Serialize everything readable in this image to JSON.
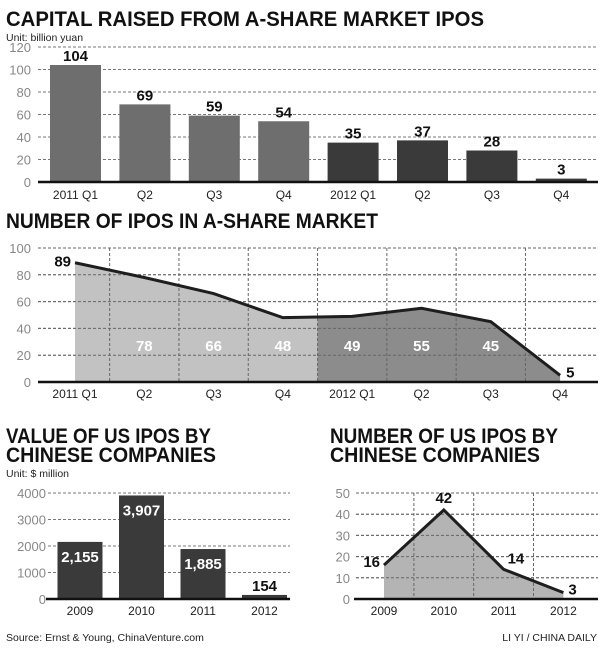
{
  "chart_data": [
    {
      "type": "bar",
      "title": "CAPITAL RAISED FROM A-SHARE MARKET IPOS",
      "unit": "Unit: billion yuan",
      "categories": [
        "2011 Q1",
        "Q2",
        "Q3",
        "Q4",
        "2012 Q1",
        "Q2",
        "Q3",
        "Q4"
      ],
      "values": [
        104,
        69,
        59,
        54,
        35,
        37,
        28,
        3
      ],
      "ylim": [
        0,
        120
      ],
      "yticks": [
        0,
        20,
        40,
        60,
        80,
        100,
        120
      ],
      "grid": "horizontal dashed",
      "colors": {
        "2011": "#6e6e6e",
        "2012": "#3a3a3a"
      }
    },
    {
      "type": "area",
      "title": "NUMBER OF IPOS IN A-SHARE MARKET",
      "categories": [
        "2011 Q1",
        "Q2",
        "Q3",
        "Q4",
        "2012 Q1",
        "Q2",
        "Q3",
        "Q4"
      ],
      "values": [
        89,
        78,
        66,
        48,
        49,
        55,
        45,
        5
      ],
      "ylim": [
        0,
        100
      ],
      "yticks": [
        0,
        20,
        40,
        60,
        80,
        100
      ],
      "grid": "dashed both",
      "colors": {
        "2011": "#c2c2c2",
        "2012": "#8c8c8c",
        "line": "#1e1e1e"
      }
    },
    {
      "type": "bar",
      "title": [
        "VALUE OF US IPOS BY",
        "CHINESE COMPANIES"
      ],
      "unit": "Unit: $ million",
      "categories": [
        "2009",
        "2010",
        "2011",
        "2012"
      ],
      "values": [
        2155,
        3907,
        1885,
        154
      ],
      "value_labels": [
        "2,155",
        "3,907",
        "1,885",
        "154"
      ],
      "ylim": [
        0,
        4000
      ],
      "yticks": [
        0,
        1000,
        2000,
        3000,
        4000
      ],
      "grid": "horizontal dashed",
      "colors": {
        "bar": "#3a3a3a"
      }
    },
    {
      "type": "area",
      "title": [
        "NUMBER OF US IPOS BY",
        "CHINESE COMPANIES"
      ],
      "categories": [
        "2009",
        "2010",
        "2011",
        "2012"
      ],
      "values": [
        16,
        42,
        14,
        3
      ],
      "ylim": [
        0,
        50
      ],
      "yticks": [
        0,
        10,
        20,
        30,
        40,
        50
      ],
      "grid": "dashed both",
      "colors": {
        "fill": "#b4b4b4",
        "line": "#1e1e1e"
      }
    }
  ],
  "footer": {
    "source": "Source: Ernst & Young, ChinaVenture.com",
    "credit": "LI YI / CHINA DAILY"
  }
}
